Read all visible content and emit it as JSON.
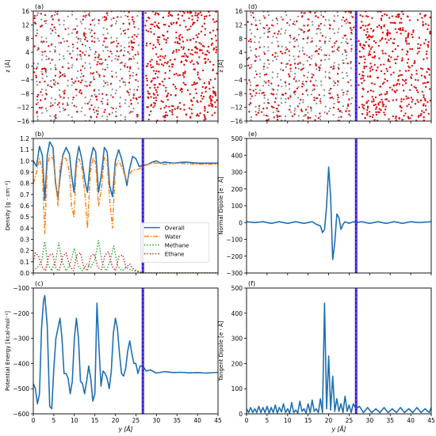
{
  "colors": {
    "overall": "#1f6fb4",
    "water": "#ff7f0e",
    "methane": "#2ca02c",
    "ethane": "#d62728",
    "interface": "#2222cc",
    "interface_inner": "#aa44ff",
    "molecule_red": "#dd1111",
    "molecule_gray": "#888888"
  },
  "chart_data": [
    {
      "id": "a",
      "panel_label": "(a)",
      "type": "scatter",
      "description_kind": "snapshot",
      "ylabel": "z [Å]",
      "xlim": [
        0,
        45
      ],
      "ylim": [
        -16,
        16
      ],
      "yticks": [
        -16,
        -12,
        -8,
        -4,
        0,
        4,
        8,
        12,
        16
      ],
      "interface_y": 26.7
    },
    {
      "id": "b",
      "panel_label": "(b)",
      "type": "line",
      "ylabel": "Density [g · cm⁻³]",
      "xlim": [
        0,
        45
      ],
      "ylim": [
        0,
        1.2
      ],
      "yticks": [
        0.0,
        0.1,
        0.2,
        0.3,
        0.4,
        0.5,
        0.6,
        0.7,
        0.8,
        0.9,
        1.0,
        1.1,
        1.2
      ],
      "interface_y": 26.7,
      "legend_position": "center-right",
      "series": [
        {
          "name": "Overall",
          "style": "solid",
          "color": "#1f6fb4",
          "x": [
            0,
            0.8,
            1.5,
            2.2,
            2.8,
            3.4,
            4.0,
            4.8,
            5.4,
            6.0,
            6.5,
            7.2,
            8.0,
            8.8,
            9.3,
            9.9,
            10.5,
            11.1,
            11.8,
            12.6,
            13.2,
            13.9,
            14.6,
            15.2,
            15.9,
            16.6,
            17.3,
            18.0,
            18.6,
            19.3,
            20.0,
            20.8,
            21.5,
            22.2,
            22.8,
            23.4,
            24.2,
            25.0,
            25.8,
            26.7,
            28.0,
            29.0,
            30.0,
            31.0,
            32.0,
            34.0,
            37.0,
            40.0,
            45.0
          ],
          "values": [
            1.0,
            0.95,
            1.13,
            1.05,
            0.65,
            1.05,
            1.17,
            1.12,
            0.8,
            0.67,
            0.85,
            1.05,
            1.12,
            1.06,
            0.88,
            0.72,
            1.0,
            1.13,
            1.02,
            0.82,
            0.72,
            1.0,
            1.12,
            1.08,
            0.72,
            0.88,
            1.12,
            1.08,
            0.78,
            0.68,
            1.0,
            1.1,
            1.02,
            0.9,
            0.78,
            0.92,
            1.04,
            1.02,
            0.95,
            0.96,
            0.97,
            0.99,
            1.0,
            0.98,
            0.99,
            0.98,
            0.99,
            0.98,
            0.98
          ]
        },
        {
          "name": "Water",
          "style": "dashdot",
          "color": "#ff7f0e",
          "x": [
            0,
            0.8,
            1.5,
            2.2,
            2.8,
            3.4,
            4.0,
            4.8,
            5.4,
            6.0,
            6.5,
            7.2,
            8.0,
            8.8,
            9.3,
            9.9,
            10.5,
            11.1,
            11.8,
            12.6,
            13.2,
            13.9,
            14.6,
            15.2,
            15.9,
            16.6,
            17.3,
            18.0,
            18.6,
            19.3,
            20.0,
            20.8,
            21.5,
            22.2,
            22.8,
            23.4,
            24.2,
            25.0,
            25.8,
            26.7,
            28.0,
            29.0,
            30.0,
            32.0,
            35.0,
            40.0,
            45.0
          ],
          "values": [
            0.8,
            0.9,
            1.02,
            0.92,
            0.35,
            0.95,
            1.05,
            1.02,
            0.85,
            0.6,
            0.95,
            1.03,
            1.02,
            0.9,
            0.6,
            0.5,
            0.95,
            1.02,
            0.95,
            0.7,
            0.4,
            0.9,
            1.03,
            0.98,
            0.6,
            0.75,
            1.03,
            1.0,
            0.65,
            0.4,
            0.95,
            1.0,
            0.95,
            0.88,
            0.82,
            0.88,
            0.92,
            0.92,
            0.93,
            0.95,
            0.97,
            0.98,
            0.98,
            0.97,
            0.98,
            0.97,
            0.97
          ]
        },
        {
          "name": "Methane",
          "style": "dotted",
          "color": "#2ca02c",
          "x": [
            0,
            1.0,
            2.0,
            2.8,
            3.6,
            4.5,
            5.5,
            6.2,
            7.0,
            8.0,
            9.0,
            10.0,
            11.0,
            12.0,
            13.0,
            14.0,
            15.0,
            15.9,
            16.8,
            17.8,
            18.8,
            19.6,
            20.6,
            21.6,
            22.6,
            23.6,
            24.6,
            25.6,
            26.7,
            30.0,
            45.0
          ],
          "values": [
            0.02,
            0.05,
            0.1,
            0.28,
            0.08,
            0.02,
            0.12,
            0.27,
            0.1,
            0.02,
            0.08,
            0.22,
            0.06,
            0.02,
            0.08,
            0.05,
            0.12,
            0.29,
            0.08,
            0.02,
            0.12,
            0.24,
            0.06,
            0.02,
            0.05,
            0.03,
            0.02,
            0.01,
            0.0,
            0.0,
            0.0
          ]
        },
        {
          "name": "Ethane",
          "style": "dotted",
          "color": "#d62728",
          "x": [
            0,
            0.5,
            1.3,
            2.2,
            3.0,
            3.8,
            4.7,
            5.5,
            6.3,
            7.2,
            8.0,
            8.9,
            9.8,
            10.6,
            11.5,
            12.3,
            13.2,
            14.0,
            14.9,
            15.7,
            16.6,
            17.5,
            18.3,
            19.2,
            20.0,
            20.9,
            21.8,
            22.6,
            23.5,
            24.3,
            25.2,
            26.0,
            26.7,
            30.0,
            45.0
          ],
          "values": [
            0.1,
            0.18,
            0.15,
            0.05,
            0.02,
            0.16,
            0.17,
            0.04,
            0.02,
            0.15,
            0.18,
            0.06,
            0.02,
            0.16,
            0.18,
            0.05,
            0.02,
            0.15,
            0.17,
            0.05,
            0.03,
            0.16,
            0.19,
            0.06,
            0.02,
            0.15,
            0.16,
            0.05,
            0.08,
            0.04,
            0.02,
            0.01,
            0.0,
            0.0,
            0.0
          ]
        }
      ]
    },
    {
      "id": "c",
      "panel_label": "(c)",
      "type": "line",
      "ylabel": "Potential Energy [kcal·mol⁻¹]",
      "xlabel": "y [Å]",
      "xlim": [
        0,
        45
      ],
      "ylim": [
        -600,
        -100
      ],
      "yticks": [
        -600,
        -500,
        -400,
        -300,
        -200,
        -100
      ],
      "xticks": [
        0,
        5,
        10,
        15,
        20,
        25,
        30,
        35,
        40,
        45
      ],
      "interface_y": 26.7,
      "series": [
        {
          "name": "",
          "color": "#1f6fb4",
          "x": [
            0,
            0.5,
            1.0,
            1.5,
            2.0,
            2.5,
            2.8,
            3.4,
            4.0,
            4.5,
            5.0,
            5.5,
            6.0,
            6.5,
            7.0,
            7.5,
            8.0,
            8.5,
            9.0,
            9.5,
            10.0,
            10.5,
            11.0,
            11.5,
            12.0,
            12.5,
            13.0,
            13.5,
            14.0,
            14.5,
            15.0,
            15.5,
            16.0,
            16.5,
            17.0,
            17.5,
            18.0,
            18.5,
            19.0,
            19.5,
            20.0,
            20.5,
            21.0,
            21.5,
            22.0,
            22.5,
            23.0,
            23.5,
            24.0,
            24.5,
            25.0,
            25.5,
            26.0,
            26.7,
            27.5,
            28.5,
            30.0,
            32.0,
            34.0,
            36.0,
            38.0,
            40.0,
            42.0,
            45.0
          ],
          "values": [
            -480,
            -500,
            -560,
            -520,
            -260,
            -150,
            -130,
            -250,
            -570,
            -580,
            -420,
            -300,
            -260,
            -220,
            -300,
            -440,
            -440,
            -460,
            -520,
            -470,
            -300,
            -220,
            -300,
            -470,
            -480,
            -520,
            -470,
            -410,
            -460,
            -550,
            -520,
            -160,
            -330,
            -490,
            -430,
            -440,
            -460,
            -500,
            -430,
            -280,
            -220,
            -260,
            -360,
            -440,
            -450,
            -420,
            -350,
            -310,
            -360,
            -400,
            -400,
            -440,
            -410,
            -410,
            -430,
            -425,
            -438,
            -432,
            -436,
            -435,
            -437,
            -436,
            -438,
            -435
          ]
        }
      ]
    },
    {
      "id": "d",
      "panel_label": "(d)",
      "type": "scatter",
      "description_kind": "snapshot",
      "ylabel": "z [Å]",
      "xlim": [
        0,
        45
      ],
      "ylim": [
        -16,
        16
      ],
      "yticks": [
        -16,
        -12,
        -8,
        -4,
        0,
        4,
        8,
        12,
        16
      ],
      "interface_y": 26.7
    },
    {
      "id": "e",
      "panel_label": "(e)",
      "type": "line",
      "ylabel": "Normal Dipole [e · Å]",
      "xlim": [
        0,
        45
      ],
      "ylim": [
        -300,
        500
      ],
      "yticks": [
        -300,
        -200,
        -100,
        0,
        100,
        200,
        300,
        400,
        500
      ],
      "interface_y": 26.7,
      "series": [
        {
          "name": "",
          "color": "#1f6fb4",
          "x": [
            0,
            2,
            4,
            6,
            8,
            10,
            12,
            14,
            16,
            17,
            18,
            18.5,
            19.0,
            19.5,
            20.0,
            20.5,
            21.0,
            21.5,
            22.0,
            22.5,
            23.0,
            23.5,
            24.0,
            25.0,
            26.0,
            26.7,
            28,
            30,
            32,
            34,
            36,
            38,
            40,
            42,
            45
          ],
          "values": [
            5,
            0,
            5,
            -5,
            5,
            -5,
            5,
            -5,
            5,
            -10,
            -20,
            -60,
            -40,
            100,
            330,
            150,
            -220,
            -120,
            50,
            30,
            -40,
            -10,
            5,
            -5,
            5,
            0,
            5,
            -5,
            5,
            -5,
            5,
            -5,
            5,
            0,
            5
          ]
        }
      ]
    },
    {
      "id": "f",
      "panel_label": "(f)",
      "type": "line",
      "ylabel": "Tangent Dipole [e · Å]",
      "xlabel": "y [Å]",
      "xlim": [
        0,
        45
      ],
      "ylim": [
        0,
        500
      ],
      "yticks": [
        0,
        100,
        200,
        300,
        400,
        500
      ],
      "xticks": [
        0,
        5,
        10,
        15,
        20,
        25,
        30,
        35,
        40,
        45
      ],
      "interface_y": 26.7,
      "series": [
        {
          "name": "",
          "color": "#1f6fb4",
          "x": [
            0,
            0.5,
            1.0,
            1.5,
            2.0,
            2.5,
            3.0,
            3.5,
            4.0,
            4.5,
            5.0,
            5.5,
            6.0,
            6.5,
            7.0,
            7.5,
            8.0,
            8.5,
            9.0,
            9.5,
            10.0,
            10.5,
            11.0,
            11.5,
            12.0,
            12.5,
            13.0,
            13.5,
            14.0,
            14.5,
            15.0,
            15.5,
            16.0,
            16.5,
            17.0,
            17.5,
            18.0,
            18.5,
            19.0,
            19.5,
            20.0,
            20.5,
            21.0,
            21.5,
            22.0,
            22.5,
            23.0,
            23.5,
            24.0,
            24.5,
            25.0,
            25.5,
            26.0,
            26.7,
            27.5,
            28.5,
            29.5,
            30.5,
            31.5,
            32.5,
            33.5,
            34.5,
            35.5,
            36.5,
            37.5,
            38.5,
            39.5,
            40.5,
            41.5,
            42.5,
            43.5,
            44.5,
            45.0
          ],
          "values": [
            20,
            5,
            25,
            5,
            20,
            5,
            30,
            5,
            25,
            5,
            30,
            3,
            25,
            5,
            35,
            3,
            25,
            8,
            40,
            5,
            20,
            3,
            45,
            5,
            15,
            3,
            50,
            10,
            20,
            3,
            40,
            5,
            55,
            10,
            20,
            5,
            60,
            5,
            440,
            20,
            230,
            15,
            150,
            10,
            60,
            10,
            40,
            5,
            70,
            10,
            35,
            5,
            40,
            20,
            30,
            5,
            25,
            5,
            20,
            5,
            25,
            5,
            20,
            5,
            25,
            5,
            20,
            5,
            25,
            5,
            20,
            5,
            25
          ]
        }
      ]
    }
  ]
}
